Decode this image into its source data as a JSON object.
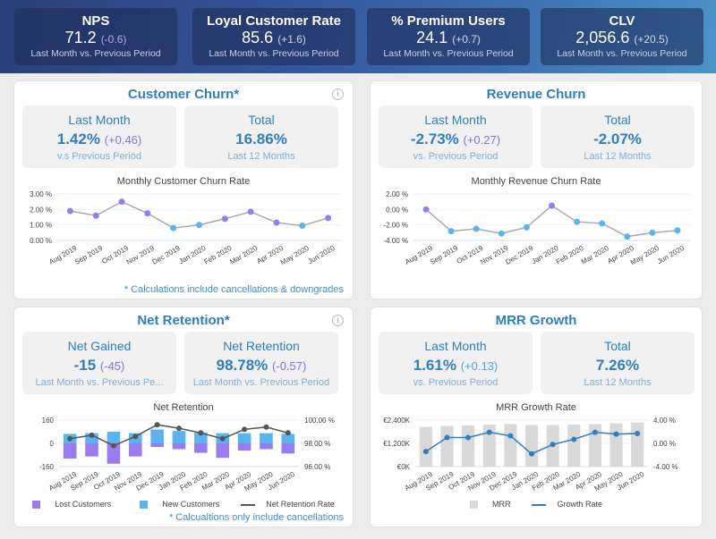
{
  "kpis": [
    {
      "title": "NPS",
      "value": "71.2",
      "delta": "(-0.6)",
      "delta_color": "#b9a8f5",
      "sub": "Last Month vs. Previous Period"
    },
    {
      "title": "Loyal Customer Rate",
      "value": "85.6",
      "delta": "(+1.6)",
      "delta_color": "#d0d6e8",
      "sub": "Last Month vs. Previous Period"
    },
    {
      "title": "% Premium Users",
      "value": "24.1",
      "delta": "(+0.7)",
      "delta_color": "#d0d6e8",
      "sub": "Last Month vs. Previous Period"
    },
    {
      "title": "CLV",
      "value": "2,056.6",
      "delta": "(+20.5)",
      "delta_color": "#d0d6e8",
      "sub": "Last Month vs. Previous Period"
    }
  ],
  "panels": {
    "customer_churn": {
      "title": "Customer Churn*",
      "cards": [
        {
          "label": "Last Month",
          "value": "1.42%",
          "delta": "(+0.46)",
          "delta_color": "#8b6fe0",
          "sub": "v.s Previous Period"
        },
        {
          "label": "Total",
          "value": "16.86%",
          "sub": "Last 12 Months"
        }
      ],
      "note": "* Calculations include cancellations & downgrades"
    },
    "revenue_churn": {
      "title": "Revenue Churn",
      "cards": [
        {
          "label": "Last Month",
          "value": "-2.73%",
          "delta": "(+0.27)",
          "delta_color": "#8b6fe0",
          "sub": "vs. Previous Period"
        },
        {
          "label": "Total",
          "value": "-2.07%",
          "sub": "Last 12 Months"
        }
      ]
    },
    "net_retention": {
      "title": "Net Retention*",
      "cards": [
        {
          "label": "Net Gained",
          "value": "-15",
          "delta": "(-45)",
          "delta_color": "#8b6fe0",
          "sub": "Last Month vs. Previous Pe..."
        },
        {
          "label": "Net Retention",
          "value": "98.78%",
          "delta": "(-0.57)",
          "delta_color": "#8b6fe0",
          "sub": "Last Month vs. Previous Period"
        }
      ],
      "note": "* Calcualtions only include cancellations"
    },
    "mrr_growth": {
      "title": "MRR Growth",
      "cards": [
        {
          "label": "Last Month",
          "value": "1.61%",
          "delta": "(+0.13)",
          "delta_color": "#4aa8e8",
          "sub": "vs. Previous Period"
        },
        {
          "label": "Total",
          "value": "7.26%",
          "sub": "Last 12 Months"
        }
      ]
    }
  },
  "chart_data": [
    {
      "type": "line",
      "title": "Monthly Customer Churn Rate",
      "categories": [
        "Aug 2019",
        "Sep 2019",
        "Oct 2019",
        "Nov 2019",
        "Dec 2019",
        "Jan 2020",
        "Feb 2020",
        "Mar 2020",
        "Apr 2020",
        "May 2020",
        "Jun 2020"
      ],
      "values": [
        1.9,
        1.6,
        2.5,
        1.75,
        0.8,
        1.0,
        1.4,
        1.85,
        1.15,
        0.95,
        1.45
      ],
      "ylim": [
        0,
        3
      ],
      "yticks": [
        "0.00 %",
        "1.00 %",
        "2.00 %",
        "3.00 %"
      ],
      "point_colors": [
        "#9a7cf0",
        "#9a7cf0",
        "#9a7cf0",
        "#9a7cf0",
        "#5ab4f0",
        "#5ab4f0",
        "#9a7cf0",
        "#9a7cf0",
        "#9a7cf0",
        "#5ab4f0",
        "#9a7cf0"
      ]
    },
    {
      "type": "line",
      "title": "Monthly Revenue Churn Rate",
      "categories": [
        "Aug 2019",
        "Sep 2019",
        "Oct 2019",
        "Nov 2019",
        "Dec 2019",
        "Jan 2020",
        "Feb 2020",
        "Mar 2020",
        "Apr 2020",
        "May 2020",
        "Jun 2020"
      ],
      "values": [
        0.0,
        -2.8,
        -2.5,
        -3.1,
        -2.3,
        0.5,
        -1.6,
        -1.8,
        -3.5,
        -3.0,
        -2.7
      ],
      "ylim": [
        -4,
        2
      ],
      "yticks": [
        "-4.00 %",
        "-2.00 %",
        "0.00 %",
        "2.00 %"
      ],
      "point_colors": [
        "#9a7cf0",
        "#5ab4f0",
        "#5ab4f0",
        "#5ab4f0",
        "#5ab4f0",
        "#9a7cf0",
        "#5ab4f0",
        "#5ab4f0",
        "#5ab4f0",
        "#5ab4f0",
        "#5ab4f0"
      ]
    },
    {
      "type": "bar",
      "title": "Net Retention",
      "categories": [
        "Aug 2019",
        "Sep 2019",
        "Oct 2019",
        "Nov 2019",
        "Dec 2019",
        "Jan 2020",
        "Feb 2020",
        "Mar 2020",
        "Apr 2020",
        "May 2020",
        "Jun 2020"
      ],
      "series": [
        {
          "name": "Lost Customers",
          "values": [
            -105,
            -90,
            -140,
            -90,
            -25,
            -40,
            -65,
            -100,
            -50,
            -40,
            -70
          ],
          "color": "#9a7cf0"
        },
        {
          "name": "New Customers",
          "values": [
            65,
            70,
            80,
            70,
            95,
            85,
            75,
            70,
            70,
            70,
            65
          ],
          "color": "#5ab4f0"
        },
        {
          "name": "Net Retention Rate",
          "values": [
            98.4,
            98.7,
            97.8,
            98.6,
            99.6,
            99.3,
            98.9,
            98.4,
            99.2,
            99.4,
            98.9
          ],
          "color": "#555555",
          "axis": "right"
        }
      ],
      "ylim": [
        -160,
        160
      ],
      "yticks": [
        "-160",
        "0",
        "160"
      ],
      "y2lim": [
        96,
        100
      ],
      "y2ticks": [
        "96.00 %",
        "98.00 %",
        "100.00 %"
      ],
      "legend": "bottom"
    },
    {
      "type": "bar",
      "title": "MRR Growth Rate",
      "categories": [
        "Aug 2019",
        "Sep 2019",
        "Oct 2019",
        "Nov 2019",
        "Dec 2019",
        "Jan 2020",
        "Feb 2020",
        "Mar 2020",
        "Apr 2020",
        "May 2020",
        "Jun 2020"
      ],
      "series": [
        {
          "name": "MRR",
          "values": [
            2050,
            2100,
            2130,
            2170,
            2200,
            2150,
            2150,
            2170,
            2200,
            2230,
            2270
          ],
          "color": "#d9d9d9"
        },
        {
          "name": "Growth Rate",
          "values": [
            -1.4,
            1.0,
            1.0,
            1.9,
            1.3,
            -1.8,
            -0.2,
            0.7,
            1.9,
            1.6,
            1.7
          ],
          "color": "#2f7fbf",
          "axis": "right"
        }
      ],
      "ylim": [
        0,
        2400
      ],
      "yticks": [
        "€0K",
        "€1,200K",
        "€2,400K"
      ],
      "y2lim": [
        -4,
        4
      ],
      "y2ticks": [
        "-4.00 %",
        "0.00 %",
        "4.00 %"
      ],
      "legend": "bottom"
    }
  ]
}
